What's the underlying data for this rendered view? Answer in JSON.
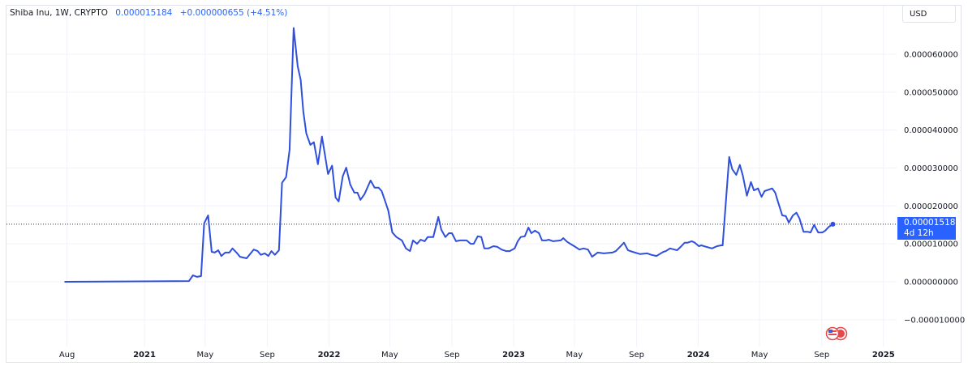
{
  "legend": {
    "symbol": "Shiba Inu, 1W, CRYPTO",
    "last": "0.000015184",
    "change": "+0.000000655 (+4.51%)"
  },
  "currency_button": "USD",
  "price_label": {
    "value": "0.000015184",
    "countdown": "4d 12h"
  },
  "events_icon": "us-flag-economic-events-icon",
  "colors": {
    "line": "#2f4fdc",
    "price_label": "#2962ff",
    "grid": "#f0f3fa",
    "text": "#131722"
  },
  "chart_data": {
    "type": "line",
    "title": "",
    "xlabel": "",
    "ylabel": "",
    "grid": true,
    "ylim": [
      -1.3e-05,
      6.8e-05
    ],
    "xlim": [
      "2020-07-01",
      "2025-04-05"
    ],
    "y_axis_position": "right",
    "x_ticks": [
      {
        "label": "Aug",
        "date": "2020-08-01",
        "bold": false
      },
      {
        "label": "2021",
        "date": "2021-01-01",
        "bold": true
      },
      {
        "label": "May",
        "date": "2021-05-01",
        "bold": false
      },
      {
        "label": "Sep",
        "date": "2021-09-01",
        "bold": false
      },
      {
        "label": "2022",
        "date": "2022-01-01",
        "bold": true
      },
      {
        "label": "May",
        "date": "2022-05-01",
        "bold": false
      },
      {
        "label": "Sep",
        "date": "2022-09-01",
        "bold": false
      },
      {
        "label": "2023",
        "date": "2023-01-01",
        "bold": true
      },
      {
        "label": "May",
        "date": "2023-05-01",
        "bold": false
      },
      {
        "label": "Sep",
        "date": "2023-09-01",
        "bold": false
      },
      {
        "label": "2024",
        "date": "2024-01-01",
        "bold": true
      },
      {
        "label": "May",
        "date": "2024-05-01",
        "bold": false
      },
      {
        "label": "Sep",
        "date": "2024-09-01",
        "bold": false
      },
      {
        "label": "2025",
        "date": "2025-01-01",
        "bold": true
      }
    ],
    "y_ticks": [
      {
        "label": "0.000060000",
        "value": 6e-05
      },
      {
        "label": "0.000050000",
        "value": 5e-05
      },
      {
        "label": "0.000040000",
        "value": 4e-05
      },
      {
        "label": "0.000030000",
        "value": 3e-05
      },
      {
        "label": "0.000020000",
        "value": 2e-05
      },
      {
        "label": "0.000010000",
        "value": 1e-05
      },
      {
        "label": "0.000000000",
        "value": 0
      },
      {
        "label": "−0.000010000",
        "value": -1e-05
      }
    ],
    "last_value": 1.5184e-05,
    "series": [
      {
        "points": [
          [
            "2020-07-27",
            0.0
          ],
          [
            "2021-03-30",
            2e-07
          ],
          [
            "2021-04-07",
            1.7e-06
          ],
          [
            "2021-04-15",
            1.3e-06
          ],
          [
            "2021-04-23",
            1.5e-06
          ],
          [
            "2021-04-29",
            1.54e-05
          ],
          [
            "2021-05-07",
            1.75e-05
          ],
          [
            "2021-05-14",
            7.9e-06
          ],
          [
            "2021-05-20",
            7.7e-06
          ],
          [
            "2021-05-27",
            8.3e-06
          ],
          [
            "2021-06-02",
            6.8e-06
          ],
          [
            "2021-06-10",
            7.7e-06
          ],
          [
            "2021-06-18",
            7.7e-06
          ],
          [
            "2021-06-24",
            8.8e-06
          ],
          [
            "2021-07-02",
            7.7e-06
          ],
          [
            "2021-07-09",
            6.6e-06
          ],
          [
            "2021-07-22",
            6.2e-06
          ],
          [
            "2021-08-05",
            8.5e-06
          ],
          [
            "2021-08-13",
            8.1e-06
          ],
          [
            "2021-08-19",
            7.1e-06
          ],
          [
            "2021-08-27",
            7.5e-06
          ],
          [
            "2021-09-03",
            6.8e-06
          ],
          [
            "2021-09-09",
            8.1e-06
          ],
          [
            "2021-09-16",
            7.1e-06
          ],
          [
            "2021-09-24",
            8.3e-06
          ],
          [
            "2021-09-30",
            2.61e-05
          ],
          [
            "2021-10-08",
            2.76e-05
          ],
          [
            "2021-10-15",
            3.48e-05
          ],
          [
            "2021-10-23",
            6.69e-05
          ],
          [
            "2021-10-31",
            5.68e-05
          ],
          [
            "2021-11-06",
            5.32e-05
          ],
          [
            "2021-11-11",
            4.49e-05
          ],
          [
            "2021-11-17",
            3.91e-05
          ],
          [
            "2021-11-25",
            3.61e-05
          ],
          [
            "2021-12-02",
            3.68e-05
          ],
          [
            "2021-12-10",
            3.1e-05
          ],
          [
            "2021-12-18",
            3.83e-05
          ],
          [
            "2021-12-30",
            2.84e-05
          ],
          [
            "2022-01-07",
            3.06e-05
          ],
          [
            "2022-01-14",
            2.22e-05
          ],
          [
            "2022-01-20",
            2.12e-05
          ],
          [
            "2022-01-28",
            2.78e-05
          ],
          [
            "2022-02-04",
            3.01e-05
          ],
          [
            "2022-02-12",
            2.56e-05
          ],
          [
            "2022-02-20",
            2.35e-05
          ],
          [
            "2022-02-26",
            2.35e-05
          ],
          [
            "2022-03-04",
            2.16e-05
          ],
          [
            "2022-03-12",
            2.31e-05
          ],
          [
            "2022-03-24",
            2.67e-05
          ],
          [
            "2022-04-01",
            2.48e-05
          ],
          [
            "2022-04-09",
            2.48e-05
          ],
          [
            "2022-04-15",
            2.39e-05
          ],
          [
            "2022-04-21",
            2.16e-05
          ],
          [
            "2022-04-28",
            1.88e-05
          ],
          [
            "2022-05-06",
            1.3e-05
          ],
          [
            "2022-05-14",
            1.18e-05
          ],
          [
            "2022-05-25",
            1.09e-05
          ],
          [
            "2022-06-02",
            8.8e-06
          ],
          [
            "2022-06-10",
            8.1e-06
          ],
          [
            "2022-06-16",
            1.09e-05
          ],
          [
            "2022-06-24",
            1e-05
          ],
          [
            "2022-07-01",
            1.11e-05
          ],
          [
            "2022-07-09",
            1.07e-05
          ],
          [
            "2022-07-15",
            1.18e-05
          ],
          [
            "2022-07-26",
            1.18e-05
          ],
          [
            "2022-08-05",
            1.71e-05
          ],
          [
            "2022-08-11",
            1.37e-05
          ],
          [
            "2022-08-19",
            1.18e-05
          ],
          [
            "2022-08-26",
            1.28e-05
          ],
          [
            "2022-09-01",
            1.28e-05
          ],
          [
            "2022-09-09",
            1.07e-05
          ],
          [
            "2022-09-17",
            1.09e-05
          ],
          [
            "2022-09-30",
            1.09e-05
          ],
          [
            "2022-10-08",
            1e-05
          ],
          [
            "2022-10-14",
            1e-05
          ],
          [
            "2022-10-22",
            1.2e-05
          ],
          [
            "2022-10-29",
            1.18e-05
          ],
          [
            "2022-11-04",
            8.8e-06
          ],
          [
            "2022-11-12",
            8.8e-06
          ],
          [
            "2022-11-22",
            9.4e-06
          ],
          [
            "2022-11-30",
            9.2e-06
          ],
          [
            "2022-12-08",
            8.5e-06
          ],
          [
            "2022-12-17",
            8.1e-06
          ],
          [
            "2022-12-24",
            8.1e-06
          ],
          [
            "2023-01-03",
            8.8e-06
          ],
          [
            "2023-01-09",
            1.07e-05
          ],
          [
            "2023-01-15",
            1.18e-05
          ],
          [
            "2023-01-23",
            1.2e-05
          ],
          [
            "2023-01-30",
            1.43e-05
          ],
          [
            "2023-02-05",
            1.28e-05
          ],
          [
            "2023-02-12",
            1.35e-05
          ],
          [
            "2023-02-20",
            1.28e-05
          ],
          [
            "2023-02-26",
            1.09e-05
          ],
          [
            "2023-03-06",
            1.09e-05
          ],
          [
            "2023-03-11",
            1.11e-05
          ],
          [
            "2023-03-20",
            1.07e-05
          ],
          [
            "2023-04-04",
            1.09e-05
          ],
          [
            "2023-04-09",
            1.15e-05
          ],
          [
            "2023-04-17",
            1.05e-05
          ],
          [
            "2023-04-23",
            1e-05
          ],
          [
            "2023-05-03",
            9.2e-06
          ],
          [
            "2023-05-11",
            8.5e-06
          ],
          [
            "2023-05-19",
            8.8e-06
          ],
          [
            "2023-05-28",
            8.5e-06
          ],
          [
            "2023-06-05",
            6.6e-06
          ],
          [
            "2023-06-16",
            7.7e-06
          ],
          [
            "2023-06-28",
            7.5e-06
          ],
          [
            "2023-07-15",
            7.7e-06
          ],
          [
            "2023-07-22",
            8.1e-06
          ],
          [
            "2023-07-30",
            9.2e-06
          ],
          [
            "2023-08-07",
            1.03e-05
          ],
          [
            "2023-08-15",
            8.3e-06
          ],
          [
            "2023-08-24",
            7.9e-06
          ],
          [
            "2023-09-08",
            7.3e-06
          ],
          [
            "2023-09-22",
            7.5e-06
          ],
          [
            "2023-09-30",
            7.1e-06
          ],
          [
            "2023-10-10",
            6.8e-06
          ],
          [
            "2023-10-14",
            7.1e-06
          ],
          [
            "2023-10-24",
            7.9e-06
          ],
          [
            "2023-10-29",
            8.1e-06
          ],
          [
            "2023-11-06",
            8.8e-06
          ],
          [
            "2023-11-15",
            8.5e-06
          ],
          [
            "2023-11-20",
            8.3e-06
          ],
          [
            "2023-11-27",
            9.2e-06
          ],
          [
            "2023-12-05",
            1.03e-05
          ],
          [
            "2023-12-11",
            1.03e-05
          ],
          [
            "2023-12-19",
            1.07e-05
          ],
          [
            "2023-12-25",
            1.03e-05
          ],
          [
            "2024-01-02",
            9.4e-06
          ],
          [
            "2024-01-07",
            9.6e-06
          ],
          [
            "2024-01-17",
            9.2e-06
          ],
          [
            "2024-01-28",
            8.8e-06
          ],
          [
            "2024-02-07",
            9.4e-06
          ],
          [
            "2024-02-15",
            9.6e-06
          ],
          [
            "2024-02-18",
            9.6e-06
          ],
          [
            "2024-03-02",
            3.29e-05
          ],
          [
            "2024-03-08",
            2.97e-05
          ],
          [
            "2024-03-16",
            2.82e-05
          ],
          [
            "2024-03-23",
            3.08e-05
          ],
          [
            "2024-03-29",
            2.8e-05
          ],
          [
            "2024-04-06",
            2.27e-05
          ],
          [
            "2024-04-14",
            2.63e-05
          ],
          [
            "2024-04-20",
            2.41e-05
          ],
          [
            "2024-04-28",
            2.46e-05
          ],
          [
            "2024-05-05",
            2.24e-05
          ],
          [
            "2024-05-11",
            2.39e-05
          ],
          [
            "2024-05-26",
            2.46e-05
          ],
          [
            "2024-06-01",
            2.35e-05
          ],
          [
            "2024-06-07",
            2.09e-05
          ],
          [
            "2024-06-15",
            1.75e-05
          ],
          [
            "2024-06-22",
            1.73e-05
          ],
          [
            "2024-06-28",
            1.56e-05
          ],
          [
            "2024-07-06",
            1.75e-05
          ],
          [
            "2024-07-13",
            1.82e-05
          ],
          [
            "2024-07-19",
            1.67e-05
          ],
          [
            "2024-07-27",
            1.32e-05
          ],
          [
            "2024-08-04",
            1.32e-05
          ],
          [
            "2024-08-10",
            1.3e-05
          ],
          [
            "2024-08-17",
            1.5e-05
          ],
          [
            "2024-08-25",
            1.3e-05
          ],
          [
            "2024-09-02",
            1.3e-05
          ],
          [
            "2024-09-08",
            1.35e-05
          ],
          [
            "2024-09-15",
            1.45e-05
          ],
          [
            "2024-09-23",
            1.5184e-05
          ]
        ]
      }
    ]
  }
}
